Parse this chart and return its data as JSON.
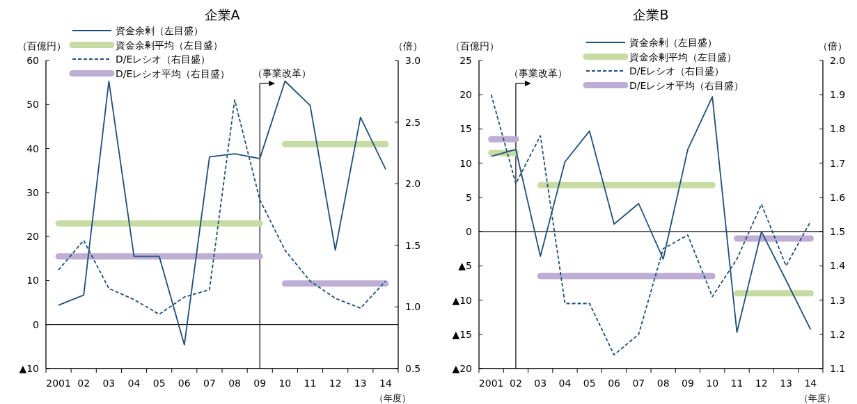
{
  "chart_data": [
    {
      "type": "line",
      "title": "企業A",
      "ylabel": "（百億円）",
      "y2label": "（倍）",
      "xlabel": "（年度）",
      "categories": [
        "2001",
        "02",
        "03",
        "04",
        "05",
        "06",
        "07",
        "08",
        "09",
        "10",
        "11",
        "12",
        "13",
        "14"
      ],
      "series": [
        {
          "name": "資金余剰（左目盛）",
          "color": "#1f4e79",
          "line_style": "solid",
          "values": [
            4.4,
            6.7,
            55.3,
            15.5,
            15.5,
            -4.6,
            38.1,
            38.8,
            37.7,
            55.3,
            49.8,
            16.9,
            47.1,
            35.3
          ]
        },
        {
          "name": "資金余剰平均（左目盛）",
          "color": "#c6dca4",
          "line_style": "solid",
          "values": [
            23,
            23,
            23,
            23,
            23,
            23,
            23,
            23,
            23,
            null,
            null,
            null,
            null,
            null
          ]
        },
        {
          "color": "#c6dca4",
          "line_style": "solid",
          "values": [
            null,
            null,
            null,
            null,
            null,
            null,
            null,
            null,
            null,
            41,
            41,
            41,
            41,
            41
          ]
        },
        {
          "name": "D/Eレシオ（右目盛）",
          "color": "#1f4e79",
          "line_style": "dashed",
          "axis": "y2",
          "values": [
            1.3,
            1.54,
            1.15,
            1.06,
            0.94,
            1.08,
            1.14,
            2.68,
            1.87,
            1.46,
            1.21,
            1.07,
            0.99,
            1.21
          ]
        },
        {
          "name": "D/Eレシオ平均（右目盛）",
          "color": "#bcaed4",
          "line_style": "solid",
          "axis": "y2",
          "values": [
            1.41,
            1.41,
            1.41,
            1.41,
            1.41,
            1.41,
            1.41,
            1.41,
            1.41,
            null,
            null,
            null,
            null,
            null
          ]
        },
        {
          "color": "#bcaed4",
          "line_style": "solid",
          "axis": "y2",
          "values": [
            null,
            null,
            null,
            null,
            null,
            null,
            null,
            null,
            null,
            1.19,
            1.19,
            1.19,
            1.19,
            1.19
          ]
        }
      ],
      "ylim": [
        -10,
        60
      ],
      "yticks": [
        {
          "value": -10,
          "label": "▲10"
        },
        0,
        10,
        20,
        30,
        40,
        50,
        60
      ],
      "y2lim": [
        0.5,
        3.0
      ],
      "y2ticks": [
        0.5,
        {
          "value": 1.0,
          "label": "1.0"
        },
        1.5,
        {
          "value": 2.0,
          "label": "2.0"
        },
        2.5,
        {
          "value": 3.0,
          "label": "3.0"
        }
      ],
      "ref_lines": [
        {
          "axis": "y",
          "value": 0
        },
        {
          "axis": "x",
          "value": "09",
          "label": "（事業改革）"
        }
      ],
      "legend": "top left",
      "grid": false,
      "marker": "none"
    },
    {
      "type": "line",
      "title": "企業B",
      "ylabel": "（百億円）",
      "y2label": "（倍）",
      "xlabel": "（年度）",
      "categories": [
        "2001",
        "02",
        "03",
        "04",
        "05",
        "06",
        "07",
        "08",
        "09",
        "10",
        "11",
        "12",
        "13",
        "14"
      ],
      "series": [
        {
          "name": "資金余剰（左目盛）",
          "color": "#1f4e79",
          "line_style": "solid",
          "values": [
            11.0,
            12.0,
            -3.6,
            10.2,
            14.7,
            1.1,
            4.1,
            -4.0,
            12.0,
            19.7,
            -14.7,
            0,
            -7.1,
            -14.3
          ]
        },
        {
          "name": "資金余剰平均（左目盛）",
          "color": "#c6dca4",
          "line_style": "solid",
          "values": [
            11.5,
            11.5,
            null,
            null,
            null,
            null,
            null,
            null,
            null,
            null,
            null,
            null,
            null,
            null
          ]
        },
        {
          "color": "#c6dca4",
          "line_style": "solid",
          "values": [
            null,
            null,
            6.8,
            6.8,
            6.8,
            6.8,
            6.8,
            6.8,
            6.8,
            6.8,
            null,
            null,
            null,
            null
          ]
        },
        {
          "color": "#c6dca4",
          "line_style": "solid",
          "values": [
            null,
            null,
            null,
            null,
            null,
            null,
            null,
            null,
            null,
            null,
            -9.0,
            -9.0,
            -9.0,
            -9.0
          ]
        },
        {
          "name": "D/Eレシオ（右目盛）",
          "color": "#1f4e79",
          "line_style": "dashed",
          "axis": "y2",
          "values": [
            1.9,
            1.64,
            1.78,
            1.29,
            1.29,
            1.14,
            1.2,
            1.45,
            1.49,
            1.31,
            1.42,
            1.58,
            1.4,
            1.53
          ]
        },
        {
          "name": "D/Eレシオ平均（右目盛）",
          "color": "#bcaed4",
          "line_style": "solid",
          "axis": "y2",
          "values": [
            1.77,
            1.77,
            null,
            null,
            null,
            null,
            null,
            null,
            null,
            null,
            null,
            null,
            null,
            null
          ]
        },
        {
          "color": "#bcaed4",
          "line_style": "solid",
          "axis": "y2",
          "values": [
            null,
            null,
            1.37,
            1.37,
            1.37,
            1.37,
            1.37,
            1.37,
            1.37,
            1.37,
            null,
            null,
            null,
            null
          ]
        },
        {
          "color": "#bcaed4",
          "line_style": "solid",
          "axis": "y2",
          "values": [
            null,
            null,
            null,
            null,
            null,
            null,
            null,
            null,
            null,
            null,
            1.48,
            1.48,
            1.48,
            1.48
          ]
        }
      ],
      "ylim": [
        -20,
        25
      ],
      "yticks": [
        {
          "value": -20,
          "label": "▲20"
        },
        {
          "value": -15,
          "label": "▲15"
        },
        {
          "value": -10,
          "label": "▲10"
        },
        {
          "value": -5,
          "label": "▲5"
        },
        0,
        5,
        10,
        15,
        20,
        25
      ],
      "y2lim": [
        1.1,
        2.0
      ],
      "y2ticks": [
        1.1,
        1.2,
        1.3,
        1.4,
        1.5,
        1.6,
        1.7,
        1.8,
        1.9,
        {
          "value": 2.0,
          "label": "2.0"
        }
      ],
      "ref_lines": [
        {
          "axis": "y",
          "value": 0
        },
        {
          "axis": "x",
          "value": "02",
          "label": "（事業改革）"
        }
      ],
      "legend": "top",
      "grid": false,
      "marker": "none"
    }
  ]
}
